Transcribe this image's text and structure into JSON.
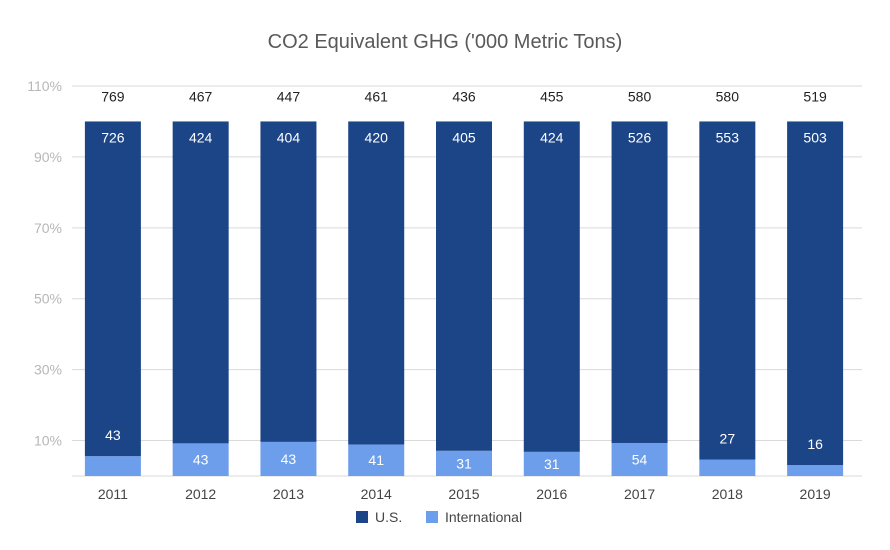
{
  "chart_data": {
    "type": "bar",
    "stacked": true,
    "normalized": true,
    "title": "CO2 Equivalent GHG ('000 Metric Tons)",
    "categories": [
      "2011",
      "2012",
      "2013",
      "2014",
      "2015",
      "2016",
      "2017",
      "2018",
      "2019"
    ],
    "series": [
      {
        "name": "U.S.",
        "color": "#1c4587",
        "values": [
          726,
          424,
          404,
          420,
          405,
          424,
          526,
          553,
          503
        ]
      },
      {
        "name": "International",
        "color": "#6d9eeb",
        "values": [
          43,
          43,
          43,
          41,
          31,
          31,
          54,
          27,
          16
        ]
      }
    ],
    "totals": [
      769,
      467,
      447,
      461,
      436,
      455,
      580,
      580,
      519
    ],
    "y_ticks": [
      "10%",
      "30%",
      "50%",
      "70%",
      "90%",
      "110%"
    ],
    "ylim": [
      0,
      1.1
    ],
    "legend_position": "bottom",
    "grid": true
  }
}
